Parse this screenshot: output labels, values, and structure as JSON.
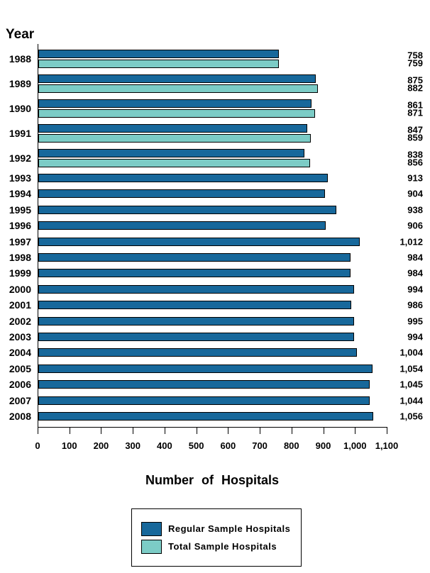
{
  "y_axis_title": "Year",
  "x_axis_title": "Number of Hospitals",
  "chart_data": {
    "type": "bar",
    "orientation": "horizontal",
    "title": "",
    "xlabel": "Number of Hospitals",
    "ylabel": "Year",
    "xlim": [
      0,
      1100
    ],
    "xticks": [
      0,
      100,
      200,
      300,
      400,
      500,
      600,
      700,
      800,
      900,
      1000,
      1100
    ],
    "grid": false,
    "value_labels_shown": true,
    "legend_position": "bottom",
    "categories": [
      "1988",
      "1989",
      "1990",
      "1991",
      "1992",
      "1993",
      "1994",
      "1995",
      "1996",
      "1997",
      "1998",
      "1999",
      "2000",
      "2001",
      "2002",
      "2003",
      "2004",
      "2005",
      "2006",
      "2007",
      "2008"
    ],
    "series": [
      {
        "name": "Regular Sample Hospitals",
        "color": "#17689B",
        "values": [
          758,
          875,
          861,
          847,
          838,
          913,
          904,
          938,
          906,
          1012,
          984,
          984,
          994,
          986,
          995,
          994,
          1004,
          1054,
          1045,
          1044,
          1056
        ]
      },
      {
        "name": "Total Sample Hospitals",
        "color": "#7CCCC6",
        "values": [
          759,
          882,
          871,
          859,
          856,
          null,
          null,
          null,
          null,
          null,
          null,
          null,
          null,
          null,
          null,
          null,
          null,
          null,
          null,
          null,
          null
        ]
      }
    ]
  }
}
